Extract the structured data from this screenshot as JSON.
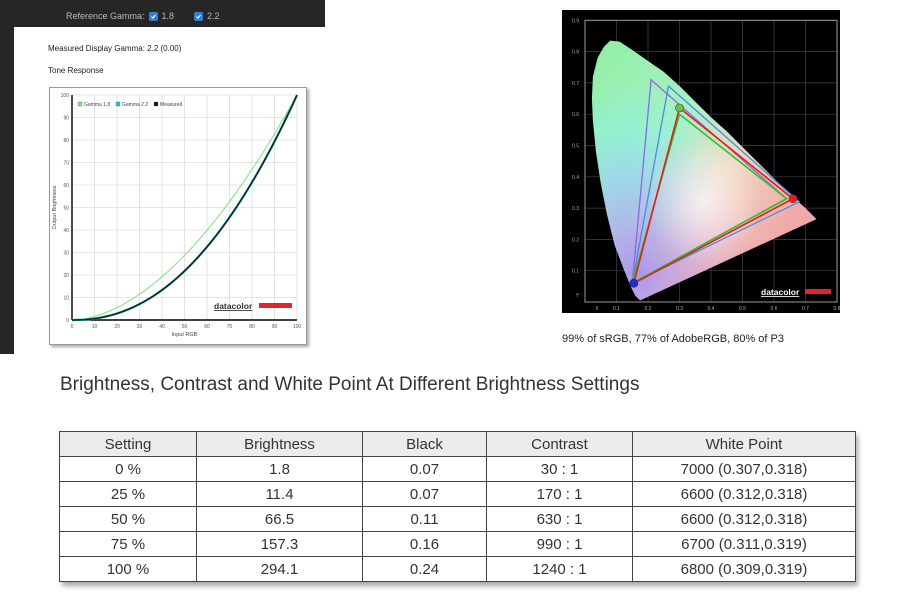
{
  "toolbar": {
    "reference_gamma_label": "Reference Gamma:",
    "gamma_options": [
      {
        "label": "1.8",
        "checked": true
      },
      {
        "label": "2.2",
        "checked": true
      }
    ],
    "checkbox_color": "#2f7fd6"
  },
  "tone_panel": {
    "measured_gamma": "Measured Display Gamma: 2.2 (0.00)",
    "section_label": "Tone Response",
    "brand": "datacolor"
  },
  "gamut_panel": {
    "caption": "99% of sRGB, 77% of AdobeRGB, 80% of P3",
    "brand": "datacolor"
  },
  "brightness_section": {
    "title": "Brightness, Contrast and White Point At Different Brightness Settings"
  },
  "table": {
    "headers": [
      "Setting",
      "Brightness",
      "Black",
      "Contrast",
      "White Point"
    ],
    "rows": [
      [
        "0 %",
        "1.8",
        "0.07",
        "30 : 1",
        "7000 (0.307,0.318)"
      ],
      [
        "25 %",
        "11.4",
        "0.07",
        "170 : 1",
        "6600 (0.312,0.318)"
      ],
      [
        "50 %",
        "66.5",
        "0.11",
        "630 : 1",
        "6600 (0.312,0.318)"
      ],
      [
        "75 %",
        "157.3",
        "0.16",
        "990 : 1",
        "6700 (0.311,0.319)"
      ],
      [
        "100 %",
        "294.1",
        "0.24",
        "1240 : 1",
        "6800 (0.309,0.319)"
      ]
    ]
  },
  "chart_data": [
    {
      "type": "line",
      "title": "Tone Response",
      "xlabel": "Input RGB",
      "ylabel": "Output Brightness",
      "xlim": [
        0,
        100
      ],
      "ylim": [
        0,
        100
      ],
      "grid": true,
      "legend_position": "top-left",
      "x_ticks": [
        0,
        10,
        20,
        30,
        40,
        50,
        60,
        70,
        80,
        90,
        100
      ],
      "y_ticks": [
        0,
        10,
        20,
        30,
        40,
        50,
        60,
        70,
        80,
        90,
        100
      ],
      "x": [
        0,
        10,
        20,
        30,
        40,
        50,
        60,
        70,
        80,
        90,
        100
      ],
      "series": [
        {
          "name": "Gamma 1.8",
          "color": "#7ee07e",
          "values": [
            0,
            1.6,
            5.5,
            11.5,
            19.2,
            28.7,
            39.9,
            52.6,
            66.9,
            82.7,
            100
          ]
        },
        {
          "name": "Gamma 2.2",
          "color": "#2ec7c7",
          "values": [
            0,
            0.6,
            2.9,
            7.1,
            13.3,
            21.8,
            32.5,
            45.6,
            61.2,
            79.3,
            100
          ]
        },
        {
          "name": "Measured",
          "color": "#1a1a1a",
          "values": [
            0,
            0.6,
            2.9,
            7.1,
            13.3,
            21.8,
            32.5,
            45.6,
            61.2,
            79.3,
            100
          ]
        }
      ]
    },
    {
      "type": "scatter",
      "title": "CIE 1931 xy Gamut",
      "xlabel": "X",
      "ylabel": "Y",
      "xlim": [
        0,
        0.8
      ],
      "ylim": [
        0,
        0.9
      ],
      "grid": true,
      "x_ticks": [
        "X",
        "0.1",
        "0.2",
        "0.3",
        "0.4",
        "0.5",
        "0.6",
        "0.7",
        "0.8"
      ],
      "y_ticks": [
        "Y",
        "0.1",
        "0.2",
        "0.3",
        "0.4",
        "0.5",
        "0.6",
        "0.7",
        "0.8",
        "0.9"
      ],
      "series": [
        {
          "name": "Measured",
          "color": "#e02020",
          "points": [
            [
              0.66,
              0.33
            ],
            [
              0.3,
              0.62
            ],
            [
              0.155,
              0.06
            ]
          ]
        },
        {
          "name": "sRGB",
          "color": "#30c030",
          "points": [
            [
              0.64,
              0.33
            ],
            [
              0.3,
              0.6
            ],
            [
              0.15,
              0.06
            ]
          ]
        },
        {
          "name": "AdobeRGB",
          "color": "#8a6ae0",
          "points": [
            [
              0.64,
              0.33
            ],
            [
              0.21,
              0.71
            ],
            [
              0.15,
              0.06
            ]
          ]
        },
        {
          "name": "P3",
          "color": "#4a8ae0",
          "points": [
            [
              0.68,
              0.32
            ],
            [
              0.265,
              0.69
            ],
            [
              0.15,
              0.06
            ]
          ]
        }
      ],
      "coverage": {
        "sRGB": 99,
        "AdobeRGB": 77,
        "P3": 80
      }
    }
  ]
}
